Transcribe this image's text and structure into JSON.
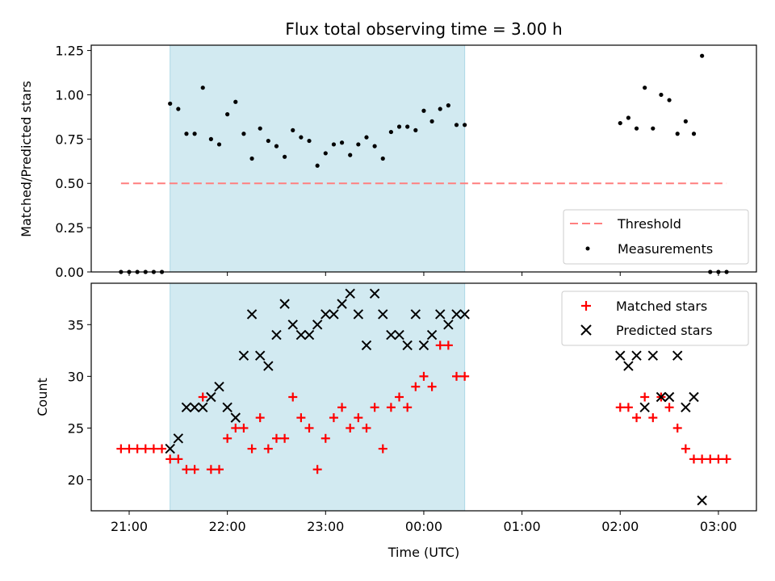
{
  "chart_data": [
    {
      "type": "scatter",
      "title": "Flux total observing time = 3.00 h",
      "ylabel": "Matched/Predicted stars",
      "ylim": [
        0,
        1.28
      ],
      "yticks": [
        0.0,
        0.25,
        0.5,
        0.75,
        1.0,
        1.25
      ],
      "ytick_labels": [
        "0.00",
        "0.25",
        "0.50",
        "0.75",
        "1.00",
        "1.25"
      ],
      "grid": false,
      "legend_placement": "lower-right",
      "shaded_interval": [
        "21:25",
        "00:25"
      ],
      "shade_color": "#add8e6",
      "threshold": {
        "name": "Threshold",
        "value": 0.5,
        "x_start": "20:55",
        "x_end": "03:05",
        "color": "#ff7f7f",
        "style": "dashed"
      },
      "series": [
        {
          "name": "Measurements",
          "color": "#000000",
          "marker": "dot",
          "points": [
            [
              "20:55",
              0.0
            ],
            [
              "21:00",
              0.0
            ],
            [
              "21:05",
              0.0
            ],
            [
              "21:10",
              0.0
            ],
            [
              "21:15",
              0.0
            ],
            [
              "21:20",
              0.0
            ],
            [
              "21:25",
              0.95
            ],
            [
              "21:30",
              0.92
            ],
            [
              "21:35",
              0.78
            ],
            [
              "21:40",
              0.78
            ],
            [
              "21:45",
              1.04
            ],
            [
              "21:50",
              0.75
            ],
            [
              "21:55",
              0.72
            ],
            [
              "22:00",
              0.89
            ],
            [
              "22:05",
              0.96
            ],
            [
              "22:10",
              0.78
            ],
            [
              "22:15",
              0.64
            ],
            [
              "22:20",
              0.81
            ],
            [
              "22:25",
              0.74
            ],
            [
              "22:30",
              0.71
            ],
            [
              "22:35",
              0.65
            ],
            [
              "22:40",
              0.8
            ],
            [
              "22:45",
              0.76
            ],
            [
              "22:50",
              0.74
            ],
            [
              "22:55",
              0.6
            ],
            [
              "23:00",
              0.67
            ],
            [
              "23:05",
              0.72
            ],
            [
              "23:10",
              0.73
            ],
            [
              "23:15",
              0.66
            ],
            [
              "23:20",
              0.72
            ],
            [
              "23:25",
              0.76
            ],
            [
              "23:30",
              0.71
            ],
            [
              "23:35",
              0.64
            ],
            [
              "23:40",
              0.79
            ],
            [
              "23:45",
              0.82
            ],
            [
              "23:50",
              0.82
            ],
            [
              "23:55",
              0.8
            ],
            [
              "00:00",
              0.91
            ],
            [
              "00:05",
              0.85
            ],
            [
              "00:10",
              0.92
            ],
            [
              "00:15",
              0.94
            ],
            [
              "00:20",
              0.83
            ],
            [
              "00:25",
              0.83
            ],
            [
              "02:00",
              0.84
            ],
            [
              "02:05",
              0.87
            ],
            [
              "02:10",
              0.81
            ],
            [
              "02:15",
              1.04
            ],
            [
              "02:20",
              0.81
            ],
            [
              "02:25",
              1.0
            ],
            [
              "02:30",
              0.97
            ],
            [
              "02:35",
              0.78
            ],
            [
              "02:40",
              0.85
            ],
            [
              "02:45",
              0.78
            ],
            [
              "02:50",
              1.22
            ],
            [
              "02:55",
              0.0
            ],
            [
              "03:00",
              0.0
            ],
            [
              "03:05",
              0.0
            ]
          ]
        }
      ],
      "legend": [
        "Threshold",
        "Measurements"
      ]
    },
    {
      "type": "scatter",
      "xlabel": "Time (UTC)",
      "ylabel": "Count",
      "ylim": [
        17,
        39
      ],
      "yticks": [
        20,
        25,
        30,
        35
      ],
      "ytick_labels": [
        "20",
        "25",
        "30",
        "35"
      ],
      "xtick_labels": [
        "21:00",
        "22:00",
        "23:00",
        "00:00",
        "01:00",
        "02:00",
        "03:00"
      ],
      "grid": false,
      "legend_placement": "upper-right",
      "shaded_interval": [
        "21:25",
        "00:25"
      ],
      "shade_color": "#add8e6",
      "series": [
        {
          "name": "Matched stars",
          "color": "#ff0000",
          "marker": "plus",
          "points": [
            [
              "20:55",
              23
            ],
            [
              "21:00",
              23
            ],
            [
              "21:05",
              23
            ],
            [
              "21:10",
              23
            ],
            [
              "21:15",
              23
            ],
            [
              "21:20",
              23
            ],
            [
              "21:25",
              22
            ],
            [
              "21:30",
              22
            ],
            [
              "21:35",
              21
            ],
            [
              "21:40",
              21
            ],
            [
              "21:45",
              28
            ],
            [
              "21:50",
              21
            ],
            [
              "21:55",
              21
            ],
            [
              "22:00",
              24
            ],
            [
              "22:05",
              25
            ],
            [
              "22:10",
              25
            ],
            [
              "22:15",
              23
            ],
            [
              "22:20",
              26
            ],
            [
              "22:25",
              23
            ],
            [
              "22:30",
              24
            ],
            [
              "22:35",
              24
            ],
            [
              "22:40",
              28
            ],
            [
              "22:45",
              26
            ],
            [
              "22:50",
              25
            ],
            [
              "22:55",
              21
            ],
            [
              "23:00",
              24
            ],
            [
              "23:05",
              26
            ],
            [
              "23:10",
              27
            ],
            [
              "23:15",
              25
            ],
            [
              "23:20",
              26
            ],
            [
              "23:25",
              25
            ],
            [
              "23:30",
              27
            ],
            [
              "23:35",
              23
            ],
            [
              "23:40",
              27
            ],
            [
              "23:45",
              28
            ],
            [
              "23:50",
              27
            ],
            [
              "23:55",
              29
            ],
            [
              "00:00",
              30
            ],
            [
              "00:05",
              29
            ],
            [
              "00:10",
              33
            ],
            [
              "00:15",
              33
            ],
            [
              "00:20",
              30
            ],
            [
              "00:25",
              30
            ],
            [
              "02:00",
              27
            ],
            [
              "02:05",
              27
            ],
            [
              "02:10",
              26
            ],
            [
              "02:15",
              28
            ],
            [
              "02:20",
              26
            ],
            [
              "02:25",
              28
            ],
            [
              "02:30",
              27
            ],
            [
              "02:35",
              25
            ],
            [
              "02:40",
              23
            ],
            [
              "02:45",
              22
            ],
            [
              "02:50",
              22
            ],
            [
              "02:55",
              22
            ],
            [
              "03:00",
              22
            ],
            [
              "03:05",
              22
            ]
          ]
        },
        {
          "name": "Predicted stars",
          "color": "#000000",
          "marker": "x",
          "points": [
            [
              "21:25",
              23
            ],
            [
              "21:30",
              24
            ],
            [
              "21:35",
              27
            ],
            [
              "21:40",
              27
            ],
            [
              "21:45",
              27
            ],
            [
              "21:50",
              28
            ],
            [
              "21:55",
              29
            ],
            [
              "22:00",
              27
            ],
            [
              "22:05",
              26
            ],
            [
              "22:10",
              32
            ],
            [
              "22:15",
              36
            ],
            [
              "22:20",
              32
            ],
            [
              "22:25",
              31
            ],
            [
              "22:30",
              34
            ],
            [
              "22:35",
              37
            ],
            [
              "22:40",
              35
            ],
            [
              "22:45",
              34
            ],
            [
              "22:50",
              34
            ],
            [
              "22:55",
              35
            ],
            [
              "23:00",
              36
            ],
            [
              "23:05",
              36
            ],
            [
              "23:10",
              37
            ],
            [
              "23:15",
              38
            ],
            [
              "23:20",
              36
            ],
            [
              "23:25",
              33
            ],
            [
              "23:30",
              38
            ],
            [
              "23:35",
              36
            ],
            [
              "23:40",
              34
            ],
            [
              "23:45",
              34
            ],
            [
              "23:50",
              33
            ],
            [
              "23:55",
              36
            ],
            [
              "00:00",
              33
            ],
            [
              "00:05",
              34
            ],
            [
              "00:10",
              36
            ],
            [
              "00:15",
              35
            ],
            [
              "00:20",
              36
            ],
            [
              "00:25",
              36
            ],
            [
              "02:00",
              32
            ],
            [
              "02:05",
              31
            ],
            [
              "02:10",
              32
            ],
            [
              "02:20",
              32
            ],
            [
              "02:15",
              27
            ],
            [
              "02:25",
              28
            ],
            [
              "02:30",
              28
            ],
            [
              "02:35",
              32
            ],
            [
              "02:40",
              27
            ],
            [
              "02:45",
              28
            ],
            [
              "02:50",
              18
            ]
          ]
        }
      ],
      "legend": [
        "Matched stars",
        "Predicted stars"
      ]
    }
  ]
}
